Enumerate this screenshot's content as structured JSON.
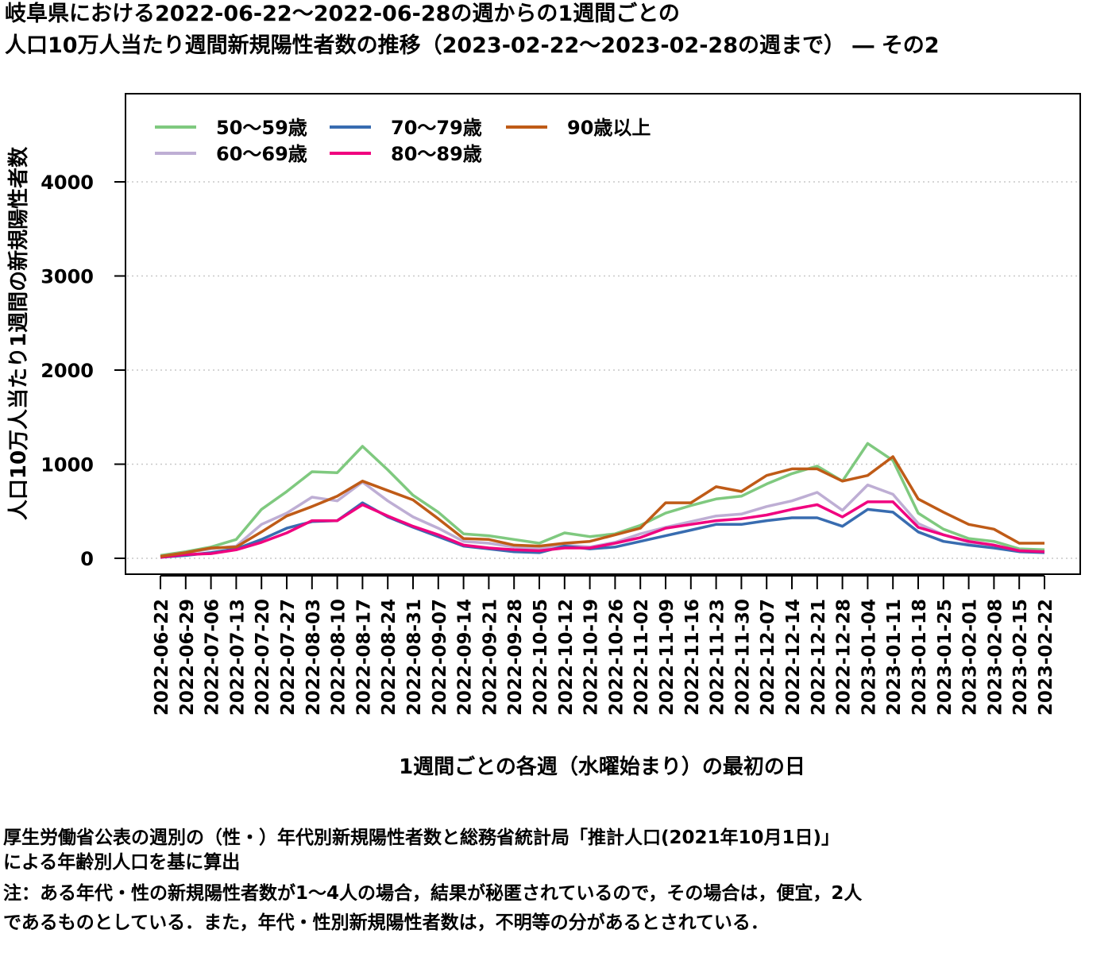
{
  "title": {
    "line1": "岐阜県における2022-06-22〜2022-06-28の週からの1週間ごとの",
    "line2": "人口10万人当たり週間新規陽性者数の推移（2023-02-22〜2023-02-28の週まで） ― その2"
  },
  "footnotes": [
    "厚生労働省公表の週別の（性・）年代別新規陽性者数と総務省統計局「推計人口(2021年10月1日)」",
    "による年齢別人口を基に算出",
    "注：ある年代・性の新規陽性者数が1〜4人の場合，結果が秘匿されているので，その場合は，便宜，2人",
    "であるものとしている．また，年代・性別新規陽性者数は，不明等の分があるとされている．"
  ],
  "chart_data": {
    "type": "line",
    "xlabel": "1週間ごとの各週（水曜始まり）の最初の日",
    "ylabel": "人口10万人当たり1週間の新規陽性者数",
    "ylim": [
      0,
      4800
    ],
    "yticks": [
      0,
      1000,
      2000,
      3000,
      4000
    ],
    "grid": "horizontal dotted",
    "legend_position": "top-left",
    "x": [
      "2022-06-22",
      "2022-06-29",
      "2022-07-06",
      "2022-07-13",
      "2022-07-20",
      "2022-07-27",
      "2022-08-03",
      "2022-08-10",
      "2022-08-17",
      "2022-08-24",
      "2022-08-31",
      "2022-09-07",
      "2022-09-14",
      "2022-09-21",
      "2022-09-28",
      "2022-10-05",
      "2022-10-12",
      "2022-10-19",
      "2022-10-26",
      "2022-11-02",
      "2022-11-09",
      "2022-11-16",
      "2022-11-23",
      "2022-11-30",
      "2022-12-07",
      "2022-12-14",
      "2022-12-21",
      "2022-12-28",
      "2023-01-04",
      "2023-01-11",
      "2023-01-18",
      "2023-01-25",
      "2023-02-01",
      "2023-02-08",
      "2023-02-15",
      "2023-02-22"
    ],
    "series": [
      {
        "name": "50〜59歳",
        "color": "#7fc97f",
        "values": [
          30,
          70,
          120,
          200,
          520,
          710,
          920,
          910,
          1190,
          940,
          670,
          490,
          260,
          240,
          200,
          160,
          270,
          230,
          260,
          350,
          480,
          560,
          630,
          660,
          790,
          900,
          980,
          820,
          1220,
          1040,
          480,
          310,
          210,
          180,
          100,
          90
        ]
      },
      {
        "name": "60〜69歳",
        "color": "#beaed4",
        "values": [
          20,
          60,
          100,
          130,
          360,
          480,
          650,
          610,
          810,
          610,
          440,
          320,
          180,
          160,
          120,
          100,
          140,
          120,
          170,
          260,
          330,
          390,
          450,
          470,
          550,
          610,
          700,
          510,
          780,
          680,
          370,
          250,
          170,
          140,
          80,
          70
        ]
      },
      {
        "name": "70〜79歳",
        "color": "#386cb0",
        "values": [
          10,
          30,
          60,
          100,
          200,
          320,
          390,
          400,
          590,
          440,
          330,
          230,
          130,
          100,
          70,
          60,
          130,
          100,
          120,
          180,
          240,
          300,
          360,
          360,
          400,
          430,
          430,
          340,
          520,
          490,
          280,
          180,
          140,
          110,
          70,
          60
        ]
      },
      {
        "name": "80〜89歳",
        "color": "#f0027f",
        "values": [
          10,
          40,
          50,
          90,
          170,
          270,
          400,
          400,
          570,
          450,
          340,
          250,
          140,
          110,
          90,
          80,
          110,
          110,
          160,
          220,
          320,
          360,
          400,
          420,
          460,
          520,
          570,
          440,
          600,
          600,
          330,
          250,
          180,
          140,
          80,
          70
        ]
      },
      {
        "name": "90歳以上",
        "color": "#bf5b17",
        "values": [
          20,
          60,
          110,
          120,
          280,
          450,
          550,
          660,
          820,
          720,
          620,
          420,
          210,
          200,
          140,
          130,
          160,
          180,
          250,
          320,
          590,
          590,
          760,
          710,
          880,
          950,
          950,
          820,
          880,
          1080,
          630,
          490,
          360,
          310,
          160,
          160
        ]
      }
    ]
  }
}
